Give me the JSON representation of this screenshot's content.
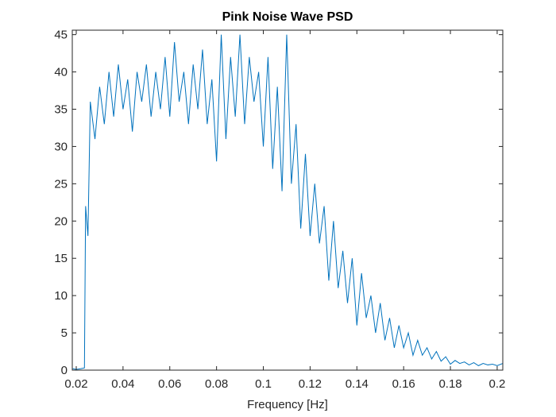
{
  "chart_data": {
    "type": "line",
    "title": "Pink Noise Wave PSD",
    "x_label": "Frequency [Hz]",
    "x": [
      0.0185,
      0.02,
      0.022,
      0.0235,
      0.024,
      0.025,
      0.026,
      0.028,
      0.03,
      0.032,
      0.034,
      0.036,
      0.038,
      0.04,
      0.042,
      0.044,
      0.046,
      0.048,
      0.05,
      0.052,
      0.054,
      0.056,
      0.058,
      0.06,
      0.062,
      0.064,
      0.066,
      0.068,
      0.07,
      0.072,
      0.074,
      0.076,
      0.078,
      0.08,
      0.082,
      0.084,
      0.086,
      0.088,
      0.09,
      0.092,
      0.094,
      0.096,
      0.098,
      0.1,
      0.102,
      0.104,
      0.106,
      0.108,
      0.11,
      0.112,
      0.114,
      0.116,
      0.118,
      0.12,
      0.122,
      0.124,
      0.126,
      0.128,
      0.13,
      0.132,
      0.134,
      0.136,
      0.138,
      0.14,
      0.142,
      0.144,
      0.146,
      0.148,
      0.15,
      0.152,
      0.154,
      0.156,
      0.158,
      0.16,
      0.162,
      0.164,
      0.166,
      0.168,
      0.17,
      0.172,
      0.174,
      0.176,
      0.178,
      0.18,
      0.182,
      0.184,
      0.186,
      0.188,
      0.19,
      0.192,
      0.194,
      0.196,
      0.198,
      0.2,
      0.2024
    ],
    "series": [
      {
        "name": "PSD",
        "color": "#0072bd",
        "values": [
          0.2,
          0.1,
          0.2,
          0.3,
          22,
          18,
          36,
          31,
          38,
          33,
          40,
          34,
          41,
          35,
          39,
          32,
          40,
          36,
          41,
          34,
          40,
          35,
          42,
          34,
          44,
          36,
          40,
          33,
          41,
          35,
          43,
          33,
          39,
          28,
          45,
          31,
          42,
          34,
          45,
          33,
          42,
          36,
          40,
          30,
          42,
          27,
          38,
          24,
          45,
          25,
          33,
          19,
          29,
          18,
          25,
          17,
          22,
          12,
          20,
          11,
          16,
          9,
          15,
          6,
          13,
          7,
          10,
          5,
          9,
          4,
          7,
          3,
          6,
          3,
          5,
          2,
          4,
          2,
          3,
          1.5,
          2.5,
          1.2,
          1.8,
          0.8,
          1.3,
          0.9,
          1.1,
          0.7,
          1.0,
          0.6,
          0.9,
          0.7,
          0.8,
          0.6,
          0.9
        ]
      }
    ],
    "xlim": [
      0.0183,
      0.2024
    ],
    "ylim": [
      0,
      45.6
    ],
    "xticks": [
      0.02,
      0.04,
      0.06,
      0.08,
      0.1,
      0.12,
      0.14,
      0.16,
      0.18,
      0.2
    ],
    "yticks": [
      0,
      5,
      10,
      15,
      20,
      25,
      30,
      35,
      40,
      45
    ]
  }
}
